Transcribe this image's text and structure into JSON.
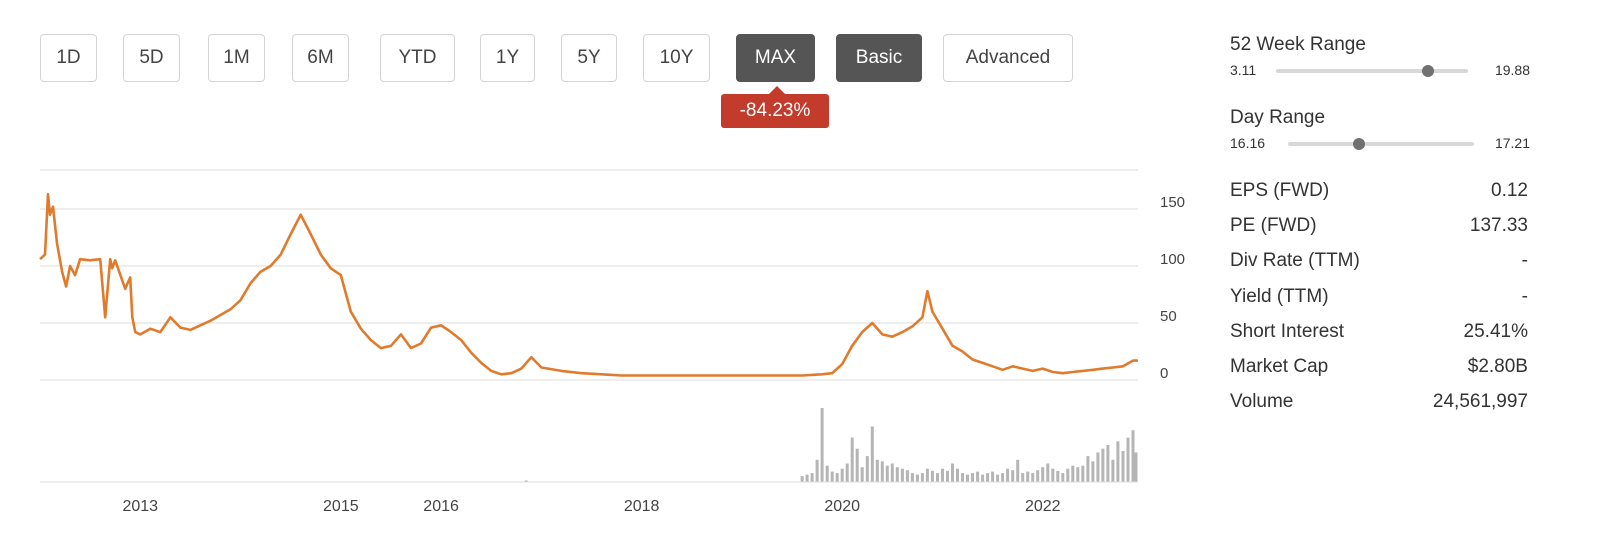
{
  "toolbar": {
    "buttons": [
      {
        "label": "1D",
        "active": false
      },
      {
        "label": "5D",
        "active": false
      },
      {
        "label": "1M",
        "active": false
      },
      {
        "label": "6M",
        "active": false
      },
      {
        "label": "YTD",
        "active": false
      },
      {
        "label": "1Y",
        "active": false
      },
      {
        "label": "5Y",
        "active": false
      },
      {
        "label": "10Y",
        "active": false
      },
      {
        "label": "MAX",
        "active": true
      },
      {
        "label": "Basic",
        "active": true
      },
      {
        "label": "Advanced",
        "active": false
      }
    ]
  },
  "change_badge": {
    "label": "-84.23%",
    "color": "#c23b2b"
  },
  "stats": {
    "week52": {
      "title": "52 Week Range",
      "low": "3.11",
      "high": "19.88",
      "position": 0.79
    },
    "day": {
      "title": "Day Range",
      "low": "16.16",
      "high": "17.21",
      "position": 0.38
    },
    "rows": [
      {
        "label": "EPS (FWD)",
        "value": "0.12"
      },
      {
        "label": "PE (FWD)",
        "value": "137.33"
      },
      {
        "label": "Div Rate (TTM)",
        "value": "-"
      },
      {
        "label": "Yield (TTM)",
        "value": "-"
      },
      {
        "label": "Short Interest",
        "value": "25.41%"
      },
      {
        "label": "Market Cap",
        "value": "$2.80B"
      },
      {
        "label": "Volume",
        "value": "24,561,997"
      }
    ]
  },
  "colors": {
    "line": "#e07b2d",
    "volume": "#b5b5b5",
    "grid": "#dcdcdc",
    "active_button": "#555555"
  },
  "chart_data": {
    "type": "line",
    "title": "",
    "xlabel": "",
    "ylabel": "",
    "x_ticks": [
      "2013",
      "2015",
      "2016",
      "2018",
      "2020",
      "2022"
    ],
    "x_tick_values": [
      2013,
      2015,
      2016,
      2018,
      2020,
      2022
    ],
    "y_ticks": [
      "0",
      "50",
      "100",
      "150"
    ],
    "y_tick_values": [
      0,
      50,
      100,
      150
    ],
    "xlim": [
      2012.0,
      2022.95
    ],
    "ylim": [
      -7,
      193
    ],
    "grid": true,
    "series": [
      {
        "color": "#e07b2d",
        "x": [
          2012.0,
          2012.05,
          2012.08,
          2012.1,
          2012.13,
          2012.17,
          2012.22,
          2012.26,
          2012.3,
          2012.35,
          2012.4,
          2012.5,
          2012.6,
          2012.65,
          2012.7,
          2012.72,
          2012.75,
          2012.85,
          2012.9,
          2012.92,
          2012.95,
          2013.0,
          2013.1,
          2013.2,
          2013.3,
          2013.4,
          2013.5,
          2013.6,
          2013.7,
          2013.8,
          2013.9,
          2014.0,
          2014.1,
          2014.2,
          2014.3,
          2014.4,
          2014.5,
          2014.6,
          2014.7,
          2014.8,
          2014.9,
          2015.0,
          2015.1,
          2015.2,
          2015.3,
          2015.4,
          2015.5,
          2015.6,
          2015.7,
          2015.8,
          2015.9,
          2016.0,
          2016.1,
          2016.2,
          2016.3,
          2016.4,
          2016.5,
          2016.6,
          2016.7,
          2016.75,
          2016.8,
          2016.9,
          2017.0,
          2017.2,
          2017.4,
          2017.6,
          2017.8,
          2018.0,
          2018.2,
          2018.4,
          2018.6,
          2018.8,
          2019.0,
          2019.2,
          2019.4,
          2019.6,
          2019.8,
          2019.9,
          2020.0,
          2020.1,
          2020.2,
          2020.3,
          2020.4,
          2020.5,
          2020.6,
          2020.7,
          2020.8,
          2020.85,
          2020.9,
          2021.0,
          2021.1,
          2021.2,
          2021.3,
          2021.4,
          2021.5,
          2021.6,
          2021.7,
          2021.8,
          2021.9,
          2022.0,
          2022.1,
          2022.2,
          2022.3,
          2022.4,
          2022.5,
          2022.6,
          2022.7,
          2022.8,
          2022.9,
          2022.95
        ],
        "values": [
          106,
          110,
          163,
          145,
          152,
          120,
          95,
          82,
          100,
          92,
          106,
          105,
          106,
          55,
          106,
          98,
          105,
          80,
          90,
          55,
          42,
          40,
          45,
          42,
          55,
          46,
          44,
          48,
          52,
          57,
          62,
          70,
          85,
          95,
          100,
          110,
          128,
          145,
          128,
          110,
          98,
          92,
          60,
          45,
          35,
          28,
          30,
          40,
          28,
          32,
          46,
          48,
          42,
          35,
          24,
          15,
          8,
          5,
          6,
          8,
          10,
          20,
          11,
          8,
          6,
          5,
          4,
          4,
          4,
          4,
          4,
          4,
          4,
          4,
          4,
          4,
          5,
          6,
          14,
          30,
          42,
          50,
          40,
          38,
          42,
          47,
          55,
          78,
          60,
          45,
          30,
          25,
          18,
          15,
          12,
          9,
          12,
          10,
          8,
          10,
          7,
          6,
          7,
          8,
          9,
          10,
          11,
          12,
          17,
          17
        ]
      }
    ],
    "volume": {
      "x": [
        2016.85,
        2019.6,
        2019.65,
        2019.7,
        2019.75,
        2019.8,
        2019.85,
        2019.9,
        2019.95,
        2020.0,
        2020.05,
        2020.1,
        2020.15,
        2020.2,
        2020.25,
        2020.3,
        2020.35,
        2020.4,
        2020.45,
        2020.5,
        2020.55,
        2020.6,
        2020.65,
        2020.7,
        2020.75,
        2020.8,
        2020.85,
        2020.9,
        2020.95,
        2021.0,
        2021.05,
        2021.1,
        2021.15,
        2021.2,
        2021.25,
        2021.3,
        2021.35,
        2021.4,
        2021.45,
        2021.5,
        2021.55,
        2021.6,
        2021.65,
        2021.7,
        2021.75,
        2021.8,
        2021.85,
        2021.9,
        2021.95,
        2022.0,
        2022.05,
        2022.1,
        2022.15,
        2022.2,
        2022.25,
        2022.3,
        2022.35,
        2022.4,
        2022.45,
        2022.5,
        2022.55,
        2022.6,
        2022.65,
        2022.7,
        2022.75,
        2022.8,
        2022.85,
        2022.9,
        2022.93
      ],
      "values": [
        2,
        8,
        10,
        12,
        30,
        100,
        22,
        14,
        12,
        18,
        25,
        60,
        45,
        20,
        35,
        75,
        30,
        28,
        22,
        25,
        20,
        18,
        16,
        12,
        10,
        12,
        18,
        15,
        12,
        18,
        15,
        25,
        18,
        12,
        10,
        12,
        14,
        10,
        12,
        14,
        10,
        12,
        18,
        16,
        30,
        12,
        14,
        12,
        16,
        20,
        25,
        18,
        15,
        12,
        18,
        22,
        20,
        22,
        35,
        28,
        40,
        45,
        50,
        30,
        55,
        42,
        60,
        70,
        40
      ]
    }
  }
}
